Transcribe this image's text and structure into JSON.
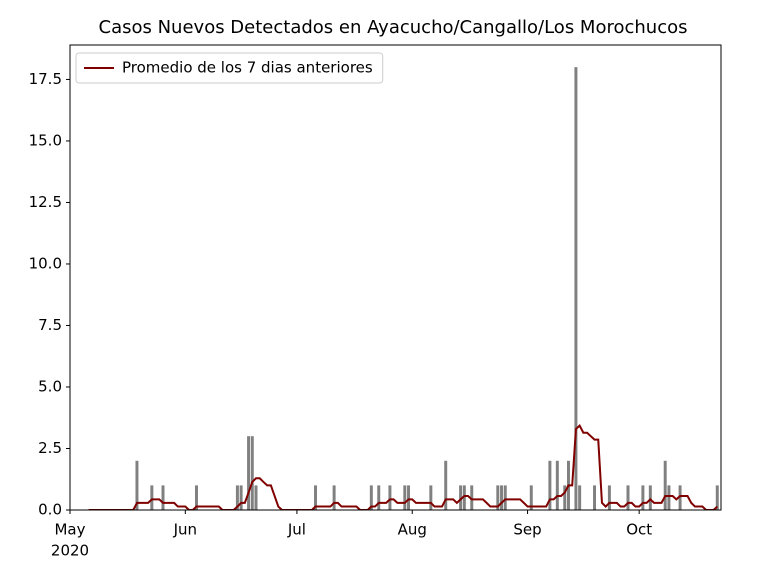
{
  "chart_data": {
    "type": "bar",
    "title": "Casos Nuevos Detectados en Ayacucho/Cangallo/Los Morochucos",
    "categories": [
      "May",
      null,
      null,
      null,
      null,
      null,
      null,
      null,
      null,
      null,
      null,
      null,
      null,
      null,
      null,
      null,
      null,
      null,
      null,
      null,
      null,
      null,
      null,
      null,
      null,
      null,
      null,
      null,
      null,
      null,
      null,
      "Jun",
      null,
      null,
      null,
      null,
      null,
      null,
      null,
      null,
      null,
      null,
      null,
      null,
      null,
      null,
      null,
      null,
      null,
      null,
      null,
      null,
      null,
      null,
      null,
      null,
      null,
      null,
      null,
      null,
      null,
      "Jul",
      null,
      null,
      null,
      null,
      null,
      null,
      null,
      null,
      null,
      null,
      null,
      null,
      null,
      null,
      null,
      null,
      null,
      null,
      null,
      null,
      null,
      null,
      null,
      null,
      null,
      null,
      null,
      null,
      null,
      null,
      "Aug",
      null,
      null,
      null,
      null,
      null,
      null,
      null,
      null,
      null,
      null,
      null,
      null,
      null,
      null,
      null,
      null,
      null,
      null,
      null,
      null,
      null,
      null,
      null,
      null,
      null,
      null,
      null,
      null,
      null,
      null,
      "Sep",
      null,
      null,
      null,
      null,
      null,
      null,
      null,
      null,
      null,
      null,
      null,
      null,
      null,
      null,
      null,
      null,
      null,
      null,
      null,
      null,
      null,
      null,
      null,
      null,
      null,
      null,
      null,
      null,
      null,
      "Oct",
      null,
      null,
      null,
      null,
      null,
      null,
      null,
      null,
      null,
      null,
      null,
      null,
      null,
      null,
      null,
      null,
      null,
      null,
      null,
      null,
      null
    ],
    "year_label": "2020",
    "color": "#808080",
    "values": [
      0,
      0,
      0,
      0,
      0,
      0,
      0,
      0,
      0,
      0,
      0,
      0,
      0,
      0,
      0,
      0,
      0,
      0,
      2,
      0,
      0,
      0,
      1,
      0,
      0,
      1,
      0,
      0,
      0,
      0,
      0,
      0,
      0,
      0,
      1,
      0,
      0,
      0,
      0,
      0,
      0,
      0,
      0,
      0,
      0,
      1,
      1,
      0,
      3,
      3,
      1,
      0,
      0,
      0,
      0,
      0,
      0,
      0,
      0,
      0,
      0,
      0,
      0,
      0,
      0,
      0,
      1,
      0,
      0,
      0,
      0,
      1,
      0,
      0,
      0,
      0,
      0,
      0,
      0,
      0,
      0,
      1,
      0,
      1,
      0,
      0,
      1,
      0,
      0,
      0,
      1,
      1,
      0,
      0,
      0,
      0,
      0,
      1,
      0,
      0,
      0,
      2,
      0,
      0,
      0,
      1,
      1,
      0,
      1,
      0,
      0,
      0,
      0,
      0,
      0,
      1,
      1,
      1,
      0,
      0,
      0,
      0,
      0,
      0,
      1,
      0,
      0,
      0,
      0,
      2,
      0,
      2,
      0,
      1,
      2,
      0,
      18,
      1,
      0,
      0,
      0,
      1,
      0,
      0,
      0,
      1,
      0,
      0,
      0,
      0,
      1,
      0,
      0,
      0,
      1,
      0,
      1,
      0,
      0,
      0,
      2,
      1,
      0,
      0,
      1,
      0,
      0,
      0,
      0,
      0,
      0,
      0,
      0,
      0,
      1
    ],
    "series": [
      {
        "name": "Promedio de los 7 dias anteriores",
        "color": "#800000",
        "values": [
          null,
          null,
          null,
          null,
          null,
          0,
          0,
          0,
          0,
          0,
          0,
          0,
          0,
          0,
          0,
          0,
          0,
          0,
          0.29,
          0.29,
          0.29,
          0.29,
          0.43,
          0.43,
          0.43,
          0.29,
          0.29,
          0.29,
          0.29,
          0.14,
          0.14,
          0.14,
          0,
          0,
          0.14,
          0.14,
          0.14,
          0.14,
          0.14,
          0.14,
          0.14,
          0,
          0,
          0,
          0,
          0.14,
          0.29,
          0.29,
          0.71,
          1.14,
          1.29,
          1.29,
          1.14,
          1,
          1,
          0.57,
          0.14,
          0,
          0,
          0,
          0,
          0,
          0,
          0,
          0,
          0,
          0.14,
          0.14,
          0.14,
          0.14,
          0.14,
          0.29,
          0.29,
          0.14,
          0.14,
          0.14,
          0.14,
          0.14,
          0,
          0,
          0,
          0.14,
          0.14,
          0.29,
          0.29,
          0.29,
          0.43,
          0.43,
          0.29,
          0.29,
          0.29,
          0.43,
          0.43,
          0.29,
          0.29,
          0.29,
          0.29,
          0.29,
          0.14,
          0.14,
          0.14,
          0.43,
          0.43,
          0.43,
          0.29,
          0.43,
          0.57,
          0.57,
          0.43,
          0.43,
          0.43,
          0.43,
          0.29,
          0.14,
          0.14,
          0.14,
          0.29,
          0.43,
          0.43,
          0.43,
          0.43,
          0.43,
          0.29,
          0.14,
          0.14,
          0.14,
          0.14,
          0.14,
          0.14,
          0.43,
          0.43,
          0.57,
          0.57,
          0.71,
          1,
          1,
          3.29,
          3.43,
          3.14,
          3.14,
          3,
          2.86,
          2.86,
          0.29,
          0.14,
          0.29,
          0.29,
          0.29,
          0.14,
          0.14,
          0.29,
          0.29,
          0.14,
          0.14,
          0.29,
          0.29,
          0.43,
          0.29,
          0.29,
          0.29,
          0.57,
          0.57,
          0.57,
          0.43,
          0.57,
          0.57,
          0.57,
          0.29,
          0.14,
          0.14,
          0.14,
          0,
          0,
          0,
          0.14
        ]
      }
    ],
    "ylim": [
      0,
      18.9
    ],
    "yticks": [
      {
        "value": 0,
        "label": "0.0"
      },
      2.5,
      {
        "value": 5,
        "label": "5.0"
      },
      7.5,
      {
        "value": 10,
        "label": "10.0"
      },
      12.5,
      {
        "value": 15,
        "label": "15.0"
      },
      17.5
    ],
    "grid": false,
    "legend": "upper left"
  }
}
